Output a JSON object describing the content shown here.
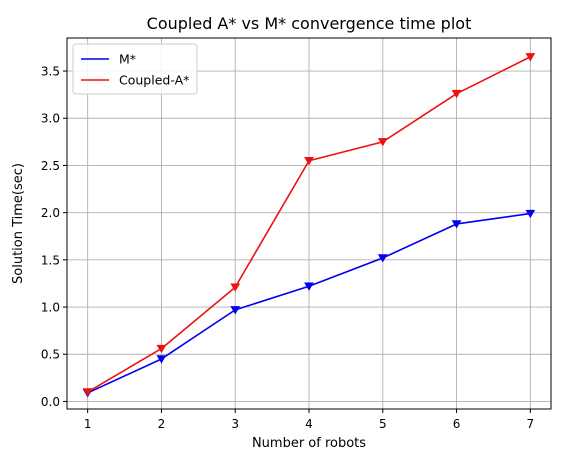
{
  "chart_data": {
    "type": "line",
    "title": "Coupled A* vs M* convergence time plot",
    "xlabel": "Number of robots",
    "ylabel": "Solution Time(sec)",
    "x": [
      1,
      2,
      3,
      4,
      5,
      6,
      7
    ],
    "xlim": [
      0.72,
      7.28
    ],
    "ylim": [
      -0.08,
      3.85
    ],
    "xticks": [
      "1",
      "2",
      "3",
      "4",
      "5",
      "6",
      "7"
    ],
    "yticks": [
      "0.0",
      "0.5",
      "1.0",
      "1.5",
      "2.0",
      "2.5",
      "3.0",
      "3.5"
    ],
    "grid": true,
    "legend_position": "top-left",
    "series": [
      {
        "name": "M*",
        "color": "#0000ee",
        "marker": "triangle-down",
        "values": [
          0.09,
          0.45,
          0.97,
          1.22,
          1.52,
          1.88,
          1.99
        ]
      },
      {
        "name": "Coupled-A*",
        "color": "#ee1111",
        "marker": "triangle-down",
        "values": [
          0.1,
          0.56,
          1.21,
          2.55,
          2.75,
          3.26,
          3.65
        ]
      }
    ]
  }
}
